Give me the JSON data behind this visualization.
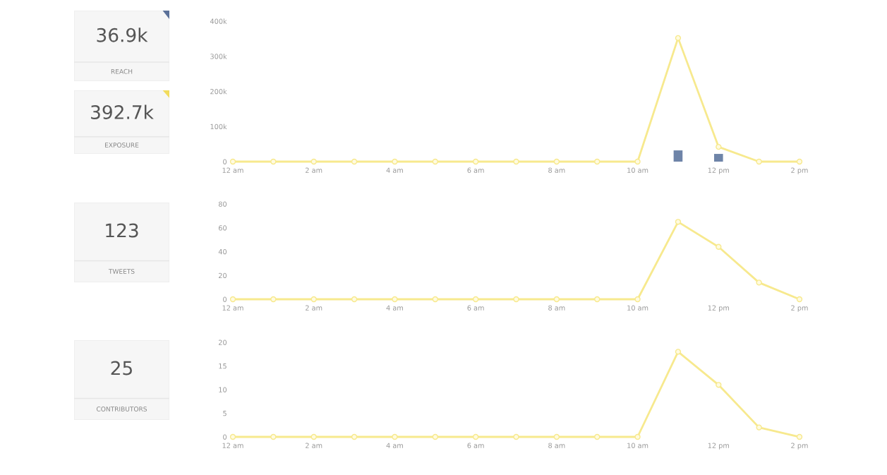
{
  "chart_data": [
    {
      "type": "other",
      "title": "36.9k",
      "subtitle": "REACH",
      "color": "#5b7199"
    },
    {
      "type": "other",
      "title": "392.7k",
      "subtitle": "EXPOSURE",
      "color": "#f2dc5d"
    },
    {
      "type": "line",
      "categories": [
        "12 am",
        null,
        "2 am",
        null,
        "4 am",
        null,
        "6 am",
        null,
        "8 am",
        null,
        "10 am",
        null,
        "12 pm",
        null,
        "2 pm"
      ],
      "marker": "circle",
      "series": [
        {
          "type": "line",
          "color": "#f7e98e",
          "values": [
            0,
            0,
            0,
            0,
            0,
            0,
            0,
            0,
            0,
            0,
            0,
            352000,
            42000,
            0,
            0
          ]
        },
        {
          "type": "bar",
          "color": "#6e84a8",
          "values": [
            null,
            null,
            null,
            null,
            null,
            null,
            null,
            null,
            null,
            null,
            null,
            32000,
            22000,
            null,
            null
          ]
        }
      ],
      "ylim": [
        0,
        400000
      ],
      "yticks": [
        {
          "value": 0,
          "label": "0"
        },
        {
          "value": 100000,
          "label": "100k"
        },
        {
          "value": 200000,
          "label": "200k"
        },
        {
          "value": 300000,
          "label": "300k"
        },
        {
          "value": 400000,
          "label": "400k"
        }
      ]
    },
    {
      "type": "other",
      "title": "123",
      "subtitle": "TWEETS"
    },
    {
      "type": "line",
      "categories": [
        "12 am",
        null,
        "2 am",
        null,
        "4 am",
        null,
        "6 am",
        null,
        "8 am",
        null,
        "10 am",
        null,
        "12 pm",
        null,
        "2 pm"
      ],
      "marker": "circle",
      "series": [
        {
          "type": "line",
          "color": "#f7e98e",
          "values": [
            0,
            0,
            0,
            0,
            0,
            0,
            0,
            0,
            0,
            0,
            0,
            65,
            44,
            14,
            0
          ]
        }
      ],
      "ylim": [
        0,
        80
      ],
      "yticks": [
        0,
        20,
        40,
        60,
        80
      ]
    },
    {
      "type": "other",
      "title": "25",
      "subtitle": "CONTRIBUTORS"
    },
    {
      "type": "line",
      "categories": [
        "12 am",
        null,
        "2 am",
        null,
        "4 am",
        null,
        "6 am",
        null,
        "8 am",
        null,
        "10 am",
        null,
        "12 pm",
        null,
        "2 pm"
      ],
      "marker": "circle",
      "series": [
        {
          "type": "line",
          "color": "#f7e98e",
          "values": [
            0,
            0,
            0,
            0,
            0,
            0,
            0,
            0,
            0,
            0,
            0,
            18,
            11,
            2,
            0
          ]
        }
      ],
      "ylim": [
        0,
        20
      ],
      "yticks": [
        0,
        5,
        10,
        15,
        20
      ]
    }
  ]
}
